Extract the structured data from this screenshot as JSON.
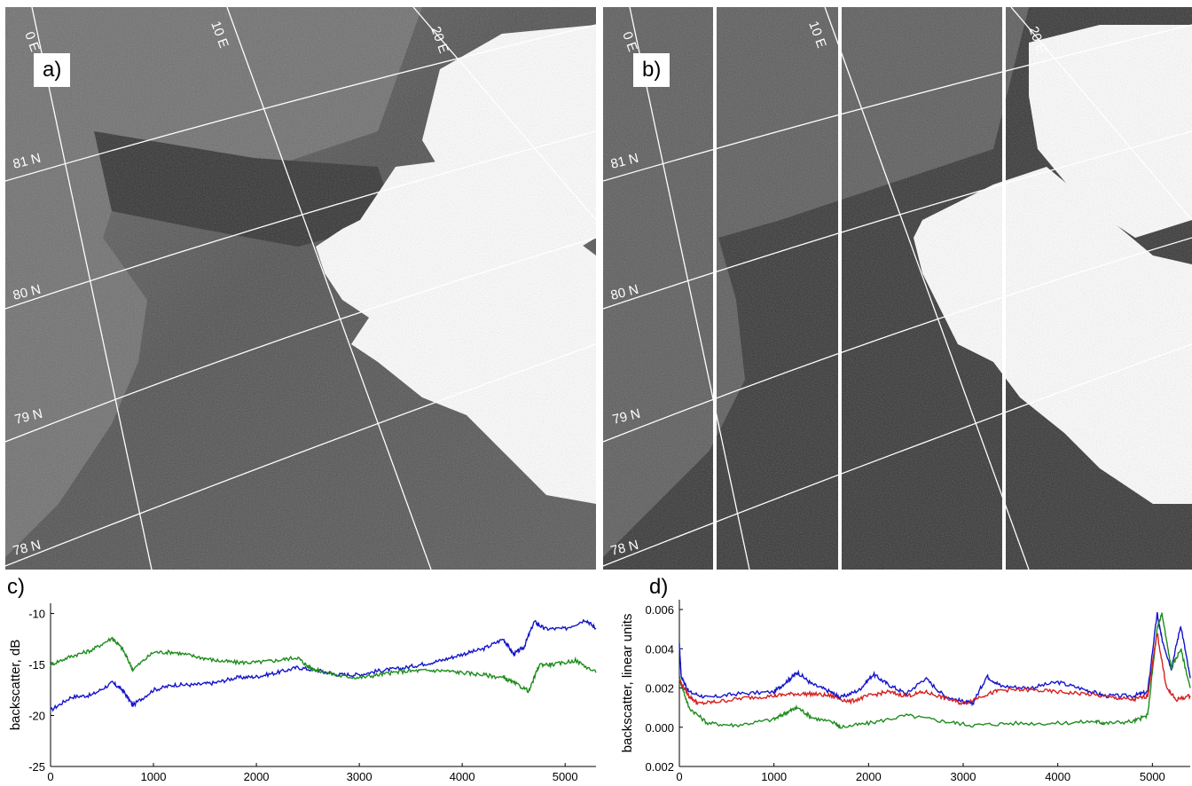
{
  "panels": [
    {
      "letter": "a)",
      "lon_labels": [
        "0 E",
        "10 E",
        "20 E"
      ],
      "lat_labels": [
        "81 N",
        "80 N",
        "79 N",
        "78 N"
      ]
    },
    {
      "letter": "b)",
      "lon_labels": [
        "0 E",
        "10 E",
        "20 E"
      ],
      "lat_labels": [
        "81 N",
        "80 N",
        "79 N",
        "78 N"
      ]
    }
  ],
  "chart_data": [
    {
      "letter": "c)",
      "type": "line",
      "ylabel": "backscatter, dB",
      "xlim": [
        0,
        5300
      ],
      "ylim": [
        -25,
        -9
      ],
      "yticks": [
        -10,
        -15,
        -20,
        -25
      ],
      "xticks": [
        0,
        1000,
        2000,
        3000,
        4000,
        5000
      ],
      "xticklabels": [
        "0",
        "1000",
        "2000",
        "3000",
        "4000",
        "5000"
      ],
      "series": [
        {
          "color": "#1414cc",
          "x": [
            0,
            200,
            400,
            600,
            700,
            800,
            1000,
            1200,
            1400,
            1600,
            1800,
            2000,
            2200,
            2400,
            2600,
            2800,
            3000,
            3200,
            3400,
            3600,
            3800,
            4000,
            4200,
            4400,
            4500,
            4600,
            4700,
            4800,
            5000,
            5200,
            5300
          ],
          "y": [
            -19.5,
            -18.2,
            -18.0,
            -16.8,
            -17.5,
            -19.0,
            -17.5,
            -17.0,
            -17.0,
            -16.8,
            -16.3,
            -16.2,
            -15.8,
            -15.3,
            -15.6,
            -16.0,
            -16.0,
            -15.6,
            -15.4,
            -15.0,
            -14.6,
            -14.0,
            -13.5,
            -12.5,
            -14.0,
            -13.3,
            -10.8,
            -11.5,
            -11.5,
            -10.6,
            -11.5
          ]
        },
        {
          "color": "#1e8c1e",
          "x": [
            0,
            200,
            400,
            600,
            700,
            800,
            1000,
            1200,
            1400,
            1600,
            1800,
            2000,
            2200,
            2400,
            2500,
            2600,
            2800,
            3000,
            3200,
            3400,
            3600,
            3800,
            4000,
            4200,
            4400,
            4500,
            4650,
            4750,
            4900,
            5100,
            5300
          ],
          "y": [
            -15.0,
            -14.2,
            -13.6,
            -12.4,
            -13.5,
            -15.5,
            -13.8,
            -13.8,
            -14.2,
            -14.6,
            -14.8,
            -14.8,
            -14.6,
            -14.3,
            -15.2,
            -15.6,
            -16.1,
            -16.3,
            -16.0,
            -15.7,
            -15.6,
            -15.6,
            -15.8,
            -16.0,
            -16.3,
            -16.8,
            -17.6,
            -15.0,
            -15.0,
            -14.6,
            -15.8
          ]
        }
      ]
    },
    {
      "letter": "d)",
      "type": "line",
      "ylabel": "backscatter, linear units",
      "xlim": [
        0,
        5400
      ],
      "ylim": [
        -0.002,
        0.0065
      ],
      "yticks": [
        0.006,
        0.004,
        0.002,
        0.0,
        -0.002
      ],
      "yticklabels": [
        "0.006",
        "0.004",
        "0.002",
        "0.000",
        "0.002"
      ],
      "xticks": [
        0,
        1000,
        2000,
        3000,
        4000,
        5000
      ],
      "xticklabels": [
        "0",
        "1000",
        "2000",
        "3000",
        "4000",
        "5000"
      ],
      "series": [
        {
          "color": "#1414cc",
          "x": [
            0,
            20,
            100,
            300,
            600,
            1000,
            1150,
            1250,
            1400,
            1600,
            1700,
            1900,
            2050,
            2200,
            2400,
            2600,
            2800,
            3000,
            3100,
            3250,
            3400,
            3700,
            4000,
            4300,
            4500,
            4800,
            4950,
            5050,
            5100,
            5200,
            5300,
            5400
          ],
          "y": [
            0.0042,
            0.0026,
            0.0018,
            0.0015,
            0.0017,
            0.0018,
            0.0024,
            0.0028,
            0.0022,
            0.0018,
            0.0015,
            0.0019,
            0.0027,
            0.0022,
            0.0017,
            0.0025,
            0.0016,
            0.0013,
            0.0012,
            0.0026,
            0.0021,
            0.002,
            0.0023,
            0.0019,
            0.0016,
            0.0016,
            0.0018,
            0.0058,
            0.0045,
            0.003,
            0.0052,
            0.0025
          ]
        },
        {
          "color": "#1e8c1e",
          "x": [
            0,
            100,
            300,
            600,
            1000,
            1150,
            1250,
            1400,
            1650,
            1700,
            2000,
            2400,
            2800,
            3100,
            3500,
            4000,
            4400,
            4500,
            4800,
            4950,
            5050,
            5100,
            5200,
            5300,
            5400
          ],
          "y": [
            0.0025,
            0.001,
            0.0002,
            0.0001,
            0.0004,
            0.0008,
            0.001,
            0.0005,
            0.0002,
            0.0,
            0.0002,
            0.0006,
            0.0003,
            0.0001,
            0.0002,
            0.0002,
            0.0003,
            0.0002,
            0.0003,
            0.0006,
            0.005,
            0.0058,
            0.003,
            0.004,
            0.002
          ]
        },
        {
          "color": "#d42020",
          "x": [
            0,
            100,
            200,
            400,
            700,
            1000,
            1200,
            1400,
            1600,
            1800,
            2000,
            2200,
            2400,
            2600,
            2800,
            3000,
            3200,
            3400,
            3700,
            4000,
            4300,
            4600,
            4800,
            4950,
            5050,
            5150,
            5250,
            5400
          ],
          "y": [
            0.0024,
            0.0016,
            0.0012,
            0.0013,
            0.0015,
            0.0016,
            0.0017,
            0.0017,
            0.0016,
            0.0013,
            0.0016,
            0.0018,
            0.0016,
            0.0018,
            0.0015,
            0.0012,
            0.0016,
            0.0019,
            0.0019,
            0.0018,
            0.0017,
            0.0015,
            0.0014,
            0.0016,
            0.0048,
            0.002,
            0.0014,
            0.0016
          ]
        }
      ]
    }
  ]
}
